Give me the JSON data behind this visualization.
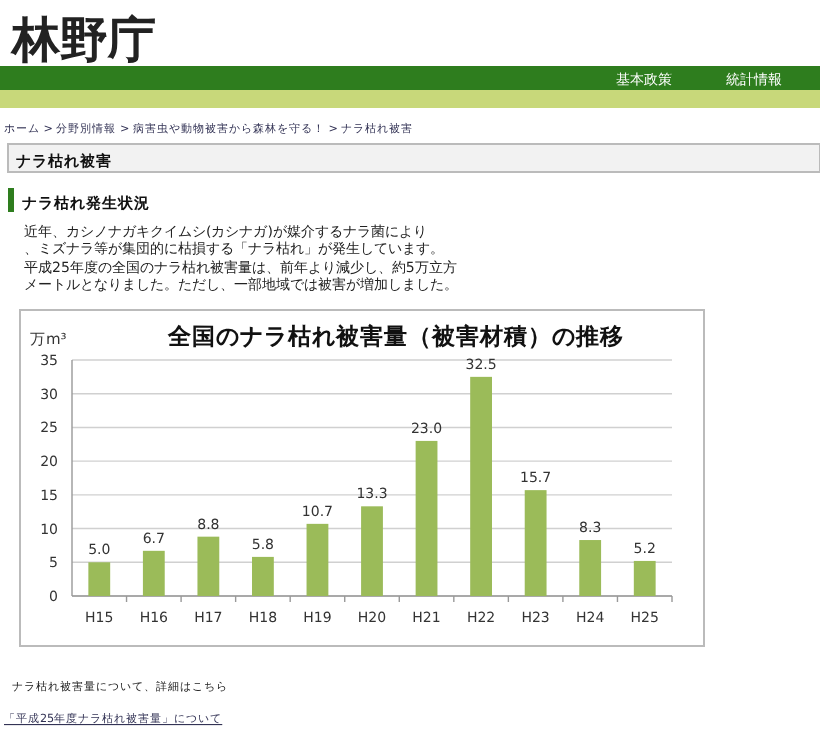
{
  "chart_data": {
    "type": "bar",
    "title": "全国のナラ枯れ被害量（被害材積）の推移",
    "ylabel": "万m³",
    "categories": [
      "H15",
      "H16",
      "H17",
      "H18",
      "H19",
      "H20",
      "H21",
      "H22",
      "H23",
      "H24",
      "H25"
    ],
    "values": [
      5.0,
      6.7,
      8.8,
      5.8,
      10.7,
      13.3,
      23.0,
      32.5,
      15.7,
      8.3,
      5.2
    ],
    "value_labels": [
      "5.0",
      "6.7",
      "8.8",
      "5.8",
      "10.7",
      "13.3",
      "23.0",
      "32.5",
      "15.7",
      "8.3",
      "5.2"
    ],
    "color": "#9bbb59",
    "ylim": [
      0,
      35
    ],
    "yticks": [
      0,
      5,
      10,
      15,
      20,
      25,
      30,
      35
    ],
    "grid": "y",
    "annotations": [
      "林野庁",
      "基本政策",
      "統計情報",
      "ホーム > 分野別情報 > 病害虫や動物被害から森林を守る！ > ナラ枯れ被害",
      "ナラ枯れ被害",
      "ナラ枯れ発生状況",
      "近年、カシノナガキクイムシ(カシナガ)が媒介するナラ菌により、ミズナラ等が集団的に枯損する「ナラ枯れ」が発生しています。",
      "平成25年度の全国のナラ枯れ被害量は、前年より減少し、約5万立方メートルとなりました。ただし、一部地域では被害が増加しました。",
      "ナラ枯れ被害量について、詳細はこちら",
      "「平成25年度ナラ枯れ被害量」について"
    ]
  }
}
